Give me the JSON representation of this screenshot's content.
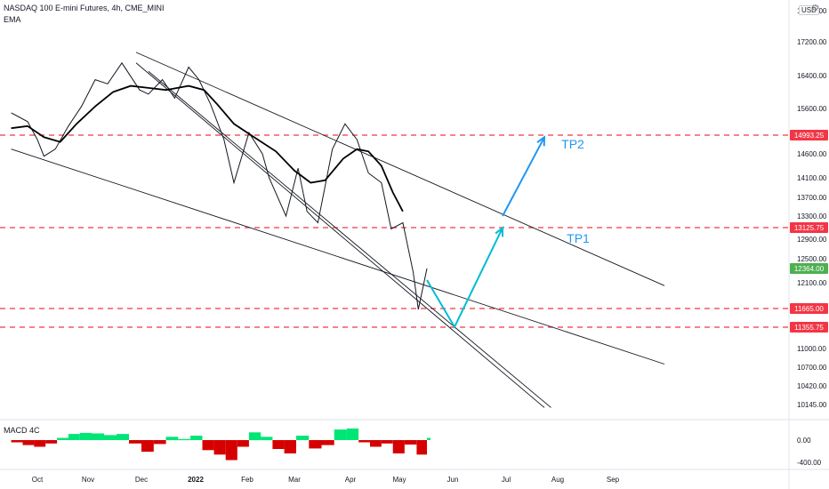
{
  "header": {
    "title": "NASDAQ 100 E-mini Futures, 4h, CME_MINI",
    "indicator": "EMA",
    "macd_label": "MACD 4C",
    "currency": "USD",
    "settings_icon": "gear-icon"
  },
  "chart_data": {
    "type": "line",
    "title": "NASDAQ 100 E-mini Futures, 4h, CME_MINI",
    "xlabel": "",
    "ylabel": "",
    "x_ticks": [
      "Oct",
      "Nov",
      "Dec",
      "2022",
      "Feb",
      "Mar",
      "Apr",
      "May",
      "Jun",
      "Jul",
      "Aug",
      "Sep"
    ],
    "y_ticks": [
      18000,
      17200,
      16400,
      15600,
      14600,
      14100,
      13700,
      13300,
      12900,
      12500,
      12100,
      11000,
      10700,
      10420,
      10145
    ],
    "macd_ticks": [
      0,
      -400
    ],
    "macd_tick_labels": [
      "0.00",
      "-400.00"
    ],
    "y_tick_labels": [
      "18000.00",
      "17200.00",
      "16400.00",
      "15600.00",
      "14600.00",
      "14100.00",
      "13700.00",
      "13300.00",
      "12900.00",
      "12500.00",
      "12100.00",
      "11000.00",
      "10700.00",
      "10420.00",
      "10145.00"
    ],
    "price_labels": [
      {
        "value": 14993.25,
        "text": "14993.25",
        "color": "#f23645"
      },
      {
        "value": 13125.75,
        "text": "13125.75",
        "color": "#f23645"
      },
      {
        "value": 12364.0,
        "text": "12364.00",
        "color": "#4caf50"
      },
      {
        "value": 11665.0,
        "text": "11665.00",
        "color": "#f23645"
      },
      {
        "value": 11355.75,
        "text": "11355.75",
        "color": "#f23645"
      }
    ],
    "horizontal_levels": [
      14993.25,
      13125.75,
      11665.0,
      11355.75
    ],
    "annotations": [
      {
        "text": "TP2",
        "color": "#2196f3"
      },
      {
        "text": "TP1",
        "color": "#2196f3"
      }
    ],
    "series": [
      {
        "kind": "price",
        "color": "#131722",
        "points": [
          [
            "2021-09-15",
            15500
          ],
          [
            "2021-09-25",
            15300
          ],
          [
            "2021-10-01",
            14900
          ],
          [
            "2021-10-05",
            14550
          ],
          [
            "2021-10-12",
            14700
          ],
          [
            "2021-10-20",
            15200
          ],
          [
            "2021-10-28",
            15650
          ],
          [
            "2021-11-05",
            16300
          ],
          [
            "2021-11-12",
            16200
          ],
          [
            "2021-11-20",
            16700
          ],
          [
            "2021-11-30",
            16050
          ],
          [
            "2021-12-05",
            15950
          ],
          [
            "2021-12-13",
            16300
          ],
          [
            "2021-12-20",
            15850
          ],
          [
            "2021-12-28",
            16600
          ],
          [
            "2022-01-03",
            16300
          ],
          [
            "2022-01-10",
            15700
          ],
          [
            "2022-01-18",
            14900
          ],
          [
            "2022-01-24",
            14000
          ],
          [
            "2022-02-02",
            15050
          ],
          [
            "2022-02-10",
            14600
          ],
          [
            "2022-02-14",
            14100
          ],
          [
            "2022-02-24",
            13300
          ],
          [
            "2022-03-03",
            14300
          ],
          [
            "2022-03-08",
            13400
          ],
          [
            "2022-03-14",
            13200
          ],
          [
            "2022-03-22",
            14700
          ],
          [
            "2022-03-29",
            15250
          ],
          [
            "2022-04-05",
            14900
          ],
          [
            "2022-04-12",
            14200
          ],
          [
            "2022-04-20",
            14000
          ],
          [
            "2022-04-26",
            13100
          ],
          [
            "2022-05-03",
            13200
          ],
          [
            "2022-05-09",
            12300
          ],
          [
            "2022-05-12",
            11650
          ],
          [
            "2022-05-17",
            12364
          ]
        ]
      },
      {
        "kind": "EMA",
        "color": "#000000",
        "points": [
          [
            "2021-09-15",
            15150
          ],
          [
            "2021-09-25",
            15200
          ],
          [
            "2021-10-05",
            14950
          ],
          [
            "2021-10-15",
            14850
          ],
          [
            "2021-10-25",
            15250
          ],
          [
            "2021-11-05",
            15650
          ],
          [
            "2021-11-15",
            16000
          ],
          [
            "2021-11-25",
            16150
          ],
          [
            "2021-12-05",
            16100
          ],
          [
            "2021-12-15",
            16050
          ],
          [
            "2021-12-28",
            16150
          ],
          [
            "2022-01-06",
            16050
          ],
          [
            "2022-01-14",
            15700
          ],
          [
            "2022-01-24",
            15250
          ],
          [
            "2022-02-05",
            14950
          ],
          [
            "2022-02-18",
            14650
          ],
          [
            "2022-03-01",
            14250
          ],
          [
            "2022-03-10",
            14000
          ],
          [
            "2022-03-18",
            14050
          ],
          [
            "2022-03-28",
            14500
          ],
          [
            "2022-04-05",
            14700
          ],
          [
            "2022-04-12",
            14650
          ],
          [
            "2022-04-20",
            14350
          ],
          [
            "2022-04-27",
            13800
          ],
          [
            "2022-05-03",
            13400
          ]
        ]
      }
    ],
    "trendlines": [
      {
        "from": [
          "2021-11-28",
          16950
        ],
        "to": [
          "2022-09-30",
          12050
        ]
      },
      {
        "from": [
          "2021-09-15",
          14700
        ],
        "to": [
          "2022-09-30",
          10750
        ]
      },
      {
        "from": [
          "2021-11-28",
          16700
        ],
        "to": [
          "2022-07-24",
          10100
        ]
      },
      {
        "from": [
          "2021-12-05",
          16500
        ],
        "to": [
          "2022-07-28",
          10100
        ]
      }
    ],
    "projection": {
      "color": "#00bcd4",
      "points": [
        [
          "2022-05-17",
          12150
        ],
        [
          "2022-06-02",
          11360
        ],
        [
          "2022-06-29",
          13120
        ]
      ]
    },
    "projection_tp2": {
      "color": "#2196f3",
      "points": [
        [
          "2022-06-29",
          13300
        ],
        [
          "2022-07-24",
          14950
        ]
      ]
    },
    "macd": {
      "pos_color": "#00e676",
      "neg_color": "#d50000",
      "values": [
        [
          "2021-09-15",
          -40
        ],
        [
          "2021-09-22",
          -90
        ],
        [
          "2021-09-29",
          -120
        ],
        [
          "2021-10-06",
          -60
        ],
        [
          "2021-10-13",
          40
        ],
        [
          "2021-10-20",
          110
        ],
        [
          "2021-10-27",
          130
        ],
        [
          "2021-11-03",
          120
        ],
        [
          "2021-11-10",
          90
        ],
        [
          "2021-11-17",
          110
        ],
        [
          "2021-11-24",
          -60
        ],
        [
          "2021-12-01",
          -210
        ],
        [
          "2021-12-08",
          -70
        ],
        [
          "2021-12-15",
          60
        ],
        [
          "2021-12-22",
          20
        ],
        [
          "2021-12-29",
          80
        ],
        [
          "2022-01-05",
          -180
        ],
        [
          "2022-01-12",
          -260
        ],
        [
          "2022-01-19",
          -360
        ],
        [
          "2022-01-26",
          -120
        ],
        [
          "2022-02-02",
          140
        ],
        [
          "2022-02-09",
          60
        ],
        [
          "2022-02-16",
          -160
        ],
        [
          "2022-02-23",
          -240
        ],
        [
          "2022-03-02",
          80
        ],
        [
          "2022-03-09",
          -150
        ],
        [
          "2022-03-16",
          -90
        ],
        [
          "2022-03-23",
          190
        ],
        [
          "2022-03-30",
          210
        ],
        [
          "2022-04-06",
          -40
        ],
        [
          "2022-04-13",
          -120
        ],
        [
          "2022-04-20",
          -60
        ],
        [
          "2022-04-27",
          -240
        ],
        [
          "2022-05-04",
          -80
        ],
        [
          "2022-05-11",
          -260
        ],
        [
          "2022-05-17",
          40
        ]
      ]
    }
  }
}
